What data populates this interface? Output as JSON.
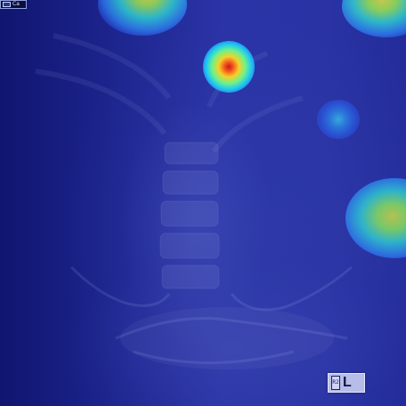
{
  "image": {
    "kind": "abdominal radiograph with heatmap overlay",
    "colormap": "jet",
    "base_tint": "#2a33a4"
  },
  "overlay_label": {
    "icon": "image-tag-icon",
    "text": "Ca"
  },
  "side_marker": {
    "sub_text": "R2",
    "letter": "L"
  },
  "heatmap_hotspots": [
    {
      "name": "hotspot-top-center",
      "intensity": 0.55
    },
    {
      "name": "hotspot-upper-center",
      "intensity": 1.0
    },
    {
      "name": "hotspot-top-right",
      "intensity": 0.6
    },
    {
      "name": "hotspot-right-middle",
      "intensity": 0.35
    },
    {
      "name": "hotspot-right-lower",
      "intensity": 0.55
    }
  ]
}
